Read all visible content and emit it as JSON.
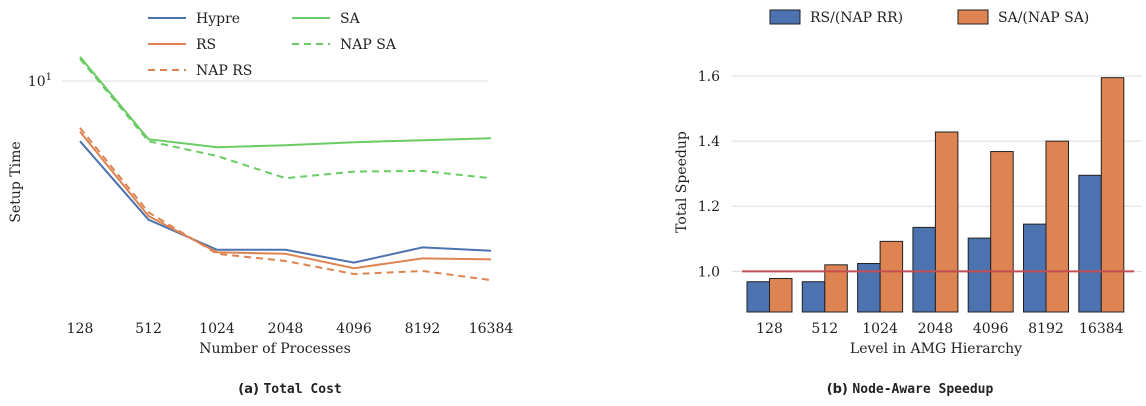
{
  "captions": {
    "a_label": "(a)",
    "a_text": "Total Cost",
    "b_label": "(b)",
    "b_text": "Node-Aware Speedup"
  },
  "chart_data": [
    {
      "type": "line",
      "xlabel": "Number of Processes",
      "ylabel": "Setup Time",
      "y_scale": "log",
      "ylim": [
        1.5,
        14
      ],
      "x": [
        "128",
        "512",
        "1024",
        "2048",
        "4096",
        "8192",
        "16384"
      ],
      "y_tick_label": "10",
      "y_tick_label_exp": "1",
      "grid": true,
      "legend_placement": "top-center",
      "series": [
        {
          "name": "Hypre",
          "color": "#4c72b0",
          "style": "solid",
          "values": [
            6.1,
            3.2,
            2.5,
            2.5,
            2.25,
            2.55,
            2.48
          ]
        },
        {
          "name": "RS",
          "color": "#dd8452",
          "style": "solid",
          "values": [
            6.6,
            3.3,
            2.45,
            2.42,
            2.15,
            2.33,
            2.31
          ]
        },
        {
          "name": "NAP RS",
          "color": "#dd8452",
          "style": "dashed",
          "values": [
            6.8,
            3.4,
            2.42,
            2.28,
            2.05,
            2.1,
            1.95
          ]
        },
        {
          "name": "SA",
          "color": "#6acc64",
          "style": "solid",
          "values": [
            12.2,
            6.2,
            5.8,
            5.9,
            6.05,
            6.15,
            6.25
          ]
        },
        {
          "name": "NAP SA",
          "color": "#6acc64",
          "style": "dashed",
          "values": [
            12.0,
            6.1,
            5.4,
            4.5,
            4.75,
            4.78,
            4.5
          ]
        }
      ]
    },
    {
      "type": "bar",
      "xlabel": "Level in AMG Hierarchy",
      "ylabel": "Total Speedup",
      "categories": [
        "128",
        "512",
        "1024",
        "2048",
        "4096",
        "8192",
        "16384"
      ],
      "ylim": [
        0.875,
        1.68
      ],
      "y_ticks": [
        "1.0",
        "1.2",
        "1.4",
        "1.6"
      ],
      "grid": true,
      "legend_placement": "top",
      "reference_line": {
        "value": 1.0,
        "color": "#c44e52"
      },
      "series": [
        {
          "name": "RS/(NAP RR)",
          "color": "#4c72b0",
          "values": [
            0.968,
            0.968,
            1.024,
            1.135,
            1.102,
            1.145,
            1.295
          ]
        },
        {
          "name": "SA/(NAP SA)",
          "color": "#dd8452",
          "values": [
            0.978,
            1.02,
            1.092,
            1.428,
            1.368,
            1.4,
            1.595
          ]
        }
      ]
    }
  ]
}
